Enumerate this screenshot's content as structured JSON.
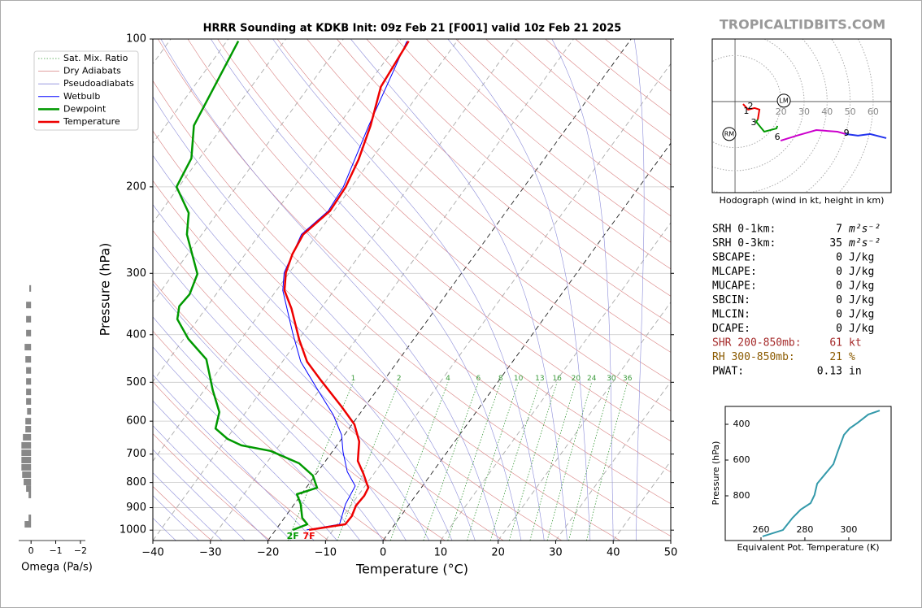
{
  "brand": "TROPICALTIDBITS.COM",
  "chart_data": [
    {
      "type": "skewt",
      "title": "HRRR Sounding at KDKB Init: 09z Feb 21 [F001] valid 10z Feb 21 2025",
      "xlabel": "Temperature (°C)",
      "ylabel": "Pressure (hPa)",
      "log_y": true,
      "xlim": [
        -40,
        50
      ],
      "ylim": [
        1050,
        100
      ],
      "xticks": [
        {
          "value": -40,
          "label": "−40"
        },
        {
          "value": -30,
          "label": "−30"
        },
        {
          "value": -20,
          "label": "−20"
        },
        {
          "value": -10,
          "label": "−10"
        },
        0,
        10,
        20,
        30,
        40,
        50
      ],
      "yticks": [
        100,
        200,
        300,
        400,
        500,
        600,
        700,
        800,
        900,
        1000
      ],
      "legend": "upper left",
      "reference_lines": [
        {
          "name": "Sat. Mix. Ratio",
          "color": "#3a9a3a"
        },
        {
          "name": "Dry Adiabats",
          "color": "#d98080"
        },
        {
          "name": "Pseudoadiabats",
          "color": "#8c8cd9"
        }
      ],
      "mixing_ratio_labels": [
        1,
        2,
        4,
        6,
        8,
        10,
        13,
        16,
        20,
        24,
        30,
        36
      ],
      "series": [
        {
          "name": "Wetbulb",
          "color": "#0000ff",
          "width": 1,
          "pressure": [
            999,
            973,
            885,
            813,
            760,
            693,
            640,
            582,
            515,
            454,
            397,
            325,
            299,
            250,
            224,
            200,
            150,
            101
          ],
          "values": [
            -14.6,
            -9.6,
            -11.1,
            -11.7,
            -14.9,
            -18.1,
            -20.5,
            -24.5,
            -30.6,
            -36.8,
            -41.8,
            -48.9,
            -50.9,
            -52.7,
            -51,
            -51.4,
            -54.7,
            -58.7
          ]
        },
        {
          "name": "Dewpoint",
          "color": "#009900",
          "width": 2.5,
          "surface_label": "2F",
          "pressure": [
            999,
            973,
            944,
            885,
            845,
            820,
            774,
            731,
            690,
            672,
            652,
            621,
            575,
            519,
            449,
            408,
            372,
            350,
            331,
            301,
            250,
            226,
            200,
            175,
            150,
            101
          ],
          "values": [
            -17,
            -15.2,
            -16.9,
            -18.9,
            -20.8,
            -18.1,
            -20.4,
            -24.3,
            -30.8,
            -36.6,
            -39.8,
            -43.2,
            -44.6,
            -48.5,
            -53.5,
            -59.2,
            -63.6,
            -64.9,
            -64.6,
            -65.8,
            -72.6,
            -75,
            -80.4,
            -81.4,
            -85.1,
            -88
          ]
        },
        {
          "name": "Temperature",
          "color": "#ee0000",
          "width": 2.5,
          "surface_label": "7F",
          "pressure": [
            999,
            973,
            937,
            891,
            851,
            820,
            768,
            723,
            660,
            609,
            560,
            496,
            454,
            410,
            354,
            325,
            299,
            274,
            250,
            224,
            200,
            176,
            150,
            125,
            101
          ],
          "values": [
            -14.2,
            -8.6,
            -8.5,
            -9.1,
            -8.9,
            -9.2,
            -11.8,
            -14.4,
            -16.6,
            -19.6,
            -24.1,
            -30.9,
            -35.7,
            -39.8,
            -45.1,
            -48.6,
            -50.6,
            -51.8,
            -52.4,
            -50.7,
            -51,
            -52.2,
            -54.4,
            -57.5,
            -58.4
          ]
        }
      ]
    },
    {
      "type": "bar",
      "xlabel": "Omega (Pa/s)",
      "log_y": true,
      "xlim": [
        0.5,
        -2.2
      ],
      "ylim": [
        1050,
        100
      ],
      "xticks": [
        0,
        {
          "value": -1,
          "label": "−1"
        },
        {
          "value": -2,
          "label": "−2"
        }
      ],
      "color": "#888888",
      "pressure": [
        322,
        348,
        372,
        397,
        424,
        449,
        473,
        498,
        523,
        547,
        573,
        600,
        623,
        647,
        672,
        696,
        720,
        745,
        771,
        798,
        823,
        848,
        944,
        973
      ],
      "values": [
        0.07,
        0.2,
        0.2,
        0.2,
        0.26,
        0.23,
        0.2,
        0.2,
        0.2,
        0.2,
        0.16,
        0.23,
        0.23,
        0.33,
        0.39,
        0.39,
        0.39,
        0.39,
        0.36,
        0.3,
        0.2,
        0.1,
        0.1,
        0.26
      ]
    },
    {
      "type": "hodograph",
      "caption": "Hodograph (wind in kt, height in km)",
      "xlim": [
        -9.9,
        67.8
      ],
      "ylim": [
        -39.6,
        27.2
      ],
      "rings": [
        20,
        30,
        40,
        50,
        60
      ],
      "series": [
        {
          "color": "#ee0000",
          "u": [
            3.5,
            5.7,
            8.5,
            10.6,
            9.9
          ],
          "v": [
            -1.1,
            -3.5,
            -2.8,
            -3.5,
            -7.8
          ]
        },
        {
          "color": "#009900",
          "u": [
            9.9,
            9.2,
            12.7,
            18,
            18.4
          ],
          "v": [
            -7.8,
            -8.8,
            -13.1,
            -11.7,
            -10.6
          ]
        },
        {
          "color": "#cc00cc",
          "u": [
            19.8,
            26.9,
            35.3,
            44.5,
            48
          ],
          "v": [
            -17,
            -14.8,
            -12.4,
            -13.1,
            -14.1
          ]
        },
        {
          "color": "#2233ee",
          "u": [
            48,
            53.4,
            58.7,
            65.7
          ],
          "v": [
            -14.1,
            -14.8,
            -14.1,
            -15.9
          ]
        }
      ],
      "height_labels": [
        {
          "label": "1",
          "u": 4.9,
          "v": -4.2
        },
        {
          "label": "2",
          "u": 6.7,
          "v": -2.1
        },
        {
          "label": "3",
          "u": 8.1,
          "v": -9.2
        },
        {
          "label": "6",
          "u": 18.4,
          "v": -15.5
        },
        {
          "label": "9",
          "u": 48.4,
          "v": -13.8
        }
      ],
      "motions": [
        {
          "label": "LM",
          "u": 21.2,
          "v": 0.4
        },
        {
          "label": "RM",
          "u": -2.5,
          "v": -14.1
        }
      ]
    },
    {
      "type": "line",
      "xlabel": "Equivalent Pot. Temperature (K)",
      "ylabel": "Pressure (hPa)",
      "xlim": [
        243.7,
        319.3
      ],
      "ylim": [
        1050,
        300
      ],
      "xticks": [
        260,
        280,
        300
      ],
      "yticks": [
        400,
        600,
        800
      ],
      "color": "#3399aa",
      "pressure": [
        1027,
        991,
        923,
        877,
        841,
        795,
        732,
        677,
        623,
        559,
        459,
        423,
        391,
        345,
        323
      ],
      "values": [
        260.7,
        270,
        274.4,
        278.1,
        282.6,
        284.4,
        285.6,
        289.3,
        293,
        294.8,
        297.8,
        300.4,
        304.1,
        308.9,
        314.1
      ]
    }
  ],
  "stats": {
    "rows": [
      {
        "label": "SRH 0-1km:",
        "value": "7",
        "unit": "m²s⁻²",
        "color": "#000000"
      },
      {
        "label": "SRH 0-3km:",
        "value": "35",
        "unit": "m²s⁻²",
        "color": "#000000"
      },
      {
        "label": "SBCAPE:",
        "value": "0",
        "unit": "J/kg",
        "color": "#000000"
      },
      {
        "label": "MLCAPE:",
        "value": "0",
        "unit": "J/kg",
        "color": "#000000"
      },
      {
        "label": "MUCAPE:",
        "value": "0",
        "unit": "J/kg",
        "color": "#000000"
      },
      {
        "label": "SBCIN:",
        "value": "0",
        "unit": "J/kg",
        "color": "#000000"
      },
      {
        "label": "MLCIN:",
        "value": "0",
        "unit": "J/kg",
        "color": "#000000"
      },
      {
        "label": "DCAPE:",
        "value": "0",
        "unit": "J/kg",
        "color": "#000000"
      },
      {
        "label": "SHR 200-850mb:",
        "value": "61",
        "unit": "kt",
        "color": "#a52a2a"
      },
      {
        "label": "RH 300-850mb:",
        "value": "21",
        "unit": "%",
        "color": "#8b5a00"
      },
      {
        "label": "PWAT:",
        "value": "0.13",
        "unit": "in",
        "color": "#000000"
      }
    ]
  }
}
